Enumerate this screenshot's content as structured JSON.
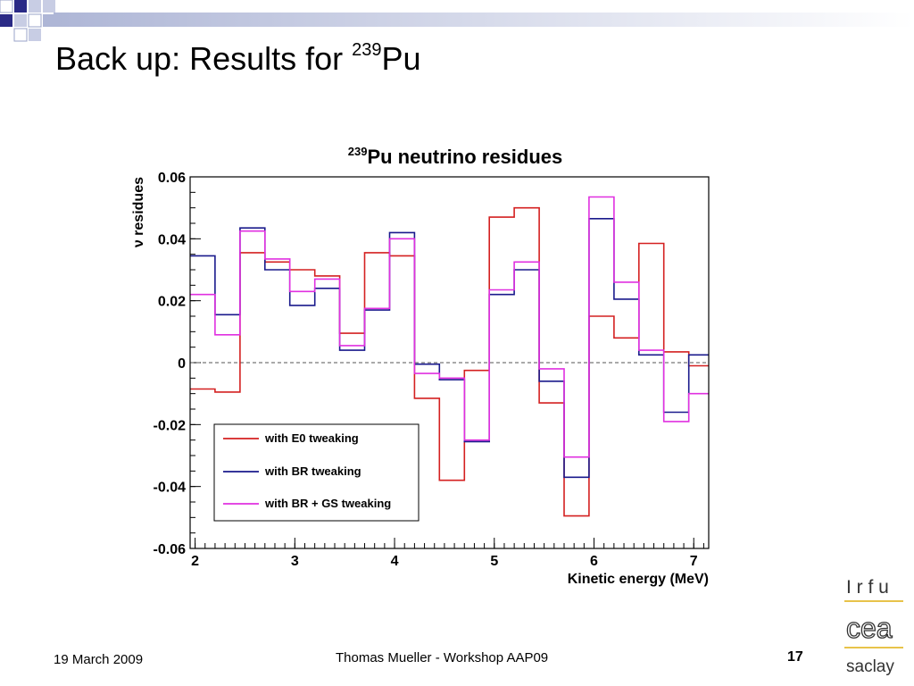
{
  "slide": {
    "title_main": "Back up: Results for ",
    "title_sup": "239",
    "title_end": "Pu"
  },
  "footer": {
    "date": "19 March 2009",
    "author": "Thomas Mueller - Workshop AAP09",
    "page": "17"
  },
  "logos": {
    "irfu": "I r f u",
    "cea": "cea",
    "saclay": "saclay"
  },
  "colors": {
    "accent_blue": "#1f1f7a",
    "e0": "#d42020",
    "br": "#1a1a8c",
    "brgs": "#e030e0",
    "logo_line": "#e8c34a"
  },
  "chart_data": {
    "type": "line",
    "title_sup": "239",
    "title": "Pu neutrino residues",
    "xlabel": "Kinetic energy (MeV)",
    "ylabel": "ν residues",
    "xlim": [
      1.95,
      7.15
    ],
    "ylim": [
      -0.06,
      0.06
    ],
    "x_ticks": [
      2,
      3,
      4,
      5,
      6,
      7
    ],
    "x_tick_labels": [
      "2",
      "3",
      "4",
      "5",
      "6",
      "7"
    ],
    "y_ticks": [
      -0.06,
      -0.04,
      -0.02,
      0,
      0.02,
      0.04,
      0.06
    ],
    "y_tick_labels": [
      "-0.06",
      "-0.04",
      "-0.02",
      "0",
      "0.02",
      "0.04",
      "0.06"
    ],
    "reference_line": 0,
    "legend_position": "bottom-left",
    "bin_edges": [
      1.95,
      2.2,
      2.45,
      2.7,
      2.95,
      3.2,
      3.45,
      3.7,
      3.95,
      4.2,
      4.45,
      4.7,
      4.95,
      5.2,
      5.45,
      5.7,
      5.95,
      6.2,
      6.45,
      6.7,
      6.95,
      7.15
    ],
    "series": [
      {
        "name": "with E0 tweaking",
        "color": "#d42020",
        "values": [
          -0.0085,
          -0.0095,
          0.0355,
          0.0325,
          0.03,
          0.028,
          0.0095,
          0.0355,
          0.0345,
          -0.0115,
          -0.038,
          -0.0025,
          0.047,
          0.05,
          -0.013,
          -0.0495,
          0.015,
          0.008,
          0.0385,
          0.0035,
          -0.001
        ]
      },
      {
        "name": "with BR tweaking",
        "color": "#1a1a8c",
        "values": [
          0.0345,
          0.0155,
          0.0435,
          0.03,
          0.0185,
          0.024,
          0.004,
          0.017,
          0.042,
          -0.0005,
          -0.0055,
          -0.0255,
          0.022,
          0.03,
          -0.006,
          -0.037,
          0.0465,
          0.0205,
          0.0025,
          -0.016,
          0.0025
        ]
      },
      {
        "name": "with BR + GS tweaking",
        "color": "#e030e0",
        "values": [
          0.022,
          0.009,
          0.0425,
          0.0335,
          0.023,
          0.027,
          0.0055,
          0.0175,
          0.04,
          -0.0035,
          -0.005,
          -0.025,
          0.0235,
          0.0325,
          -0.002,
          -0.0305,
          0.0535,
          0.026,
          0.004,
          -0.019,
          -0.01
        ]
      }
    ]
  }
}
